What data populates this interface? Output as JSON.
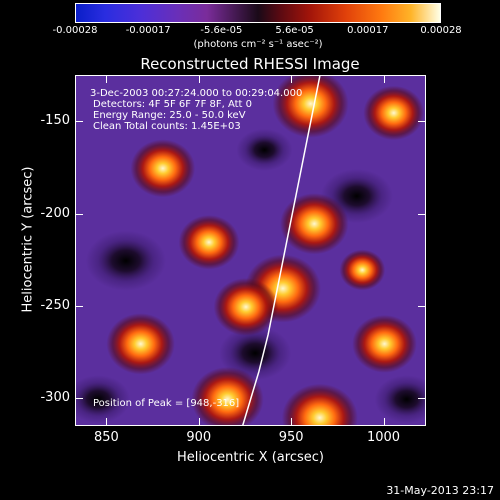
{
  "colorbar": {
    "ticks": [
      "-0.00028",
      "-0.00017",
      "-5.6e-05",
      "5.6e-05",
      "0.00017",
      "0.00028"
    ],
    "units": "(photons cm⁻² s⁻¹ asec⁻²)"
  },
  "chart_data": {
    "type": "heatmap",
    "title": "Reconstructed RHESSI Image",
    "xlabel": "Heliocentric X (arcsec)",
    "ylabel": "Heliocentric Y (arcsec)",
    "xlim": [
      833,
      1023
    ],
    "ylim": [
      -315,
      -125
    ],
    "x_ticks": [
      850,
      900,
      950,
      1000
    ],
    "y_ticks": [
      -150,
      -200,
      -250,
      -300
    ],
    "color_range": [
      -0.00028,
      0.00028
    ],
    "peak": [
      948,
      -316
    ],
    "limb_curve": [
      [
        920,
        -325
      ],
      [
        926,
        -305
      ],
      [
        932,
        -285
      ],
      [
        937,
        -265
      ],
      [
        941,
        -245
      ],
      [
        945,
        -225
      ],
      [
        949,
        -205
      ],
      [
        953,
        -185
      ],
      [
        957,
        -165
      ],
      [
        961,
        -145
      ],
      [
        965,
        -125
      ]
    ],
    "blobs": [
      {
        "x": 960,
        "y": -140,
        "v": 1.0
      },
      {
        "x": 962,
        "y": -205,
        "v": 0.9
      },
      {
        "x": 945,
        "y": -240,
        "v": 1.0
      },
      {
        "x": 925,
        "y": -250,
        "v": 0.85
      },
      {
        "x": 905,
        "y": -215,
        "v": 0.8
      },
      {
        "x": 880,
        "y": -175,
        "v": 0.85
      },
      {
        "x": 868,
        "y": -270,
        "v": 0.9
      },
      {
        "x": 915,
        "y": -300,
        "v": 0.95
      },
      {
        "x": 965,
        "y": -310,
        "v": 1.0
      },
      {
        "x": 1005,
        "y": -145,
        "v": 0.8
      },
      {
        "x": 1000,
        "y": -270,
        "v": 0.85
      },
      {
        "x": 988,
        "y": -230,
        "v": 0.6
      }
    ],
    "holes": [
      {
        "x": 860,
        "y": -225,
        "v": 1.0
      },
      {
        "x": 930,
        "y": -275,
        "v": 0.9
      },
      {
        "x": 985,
        "y": -190,
        "v": 0.9
      },
      {
        "x": 1012,
        "y": -300,
        "v": 0.8
      },
      {
        "x": 845,
        "y": -300,
        "v": 0.8
      },
      {
        "x": 935,
        "y": -165,
        "v": 0.7
      }
    ]
  },
  "info": {
    "time": "3-Dec-2003 00:27:24.000 to 00:29:04.000",
    "detectors": "Detectors: 4F 5F 6F 7F 8F, Att 0",
    "energy": "Energy Range: 25.0 - 50.0 keV",
    "clean": "Clean     Total counts: 1.45E+03",
    "peak": "Position of Peak = [948,-316]"
  },
  "footer": "31-May-2013 23:17"
}
